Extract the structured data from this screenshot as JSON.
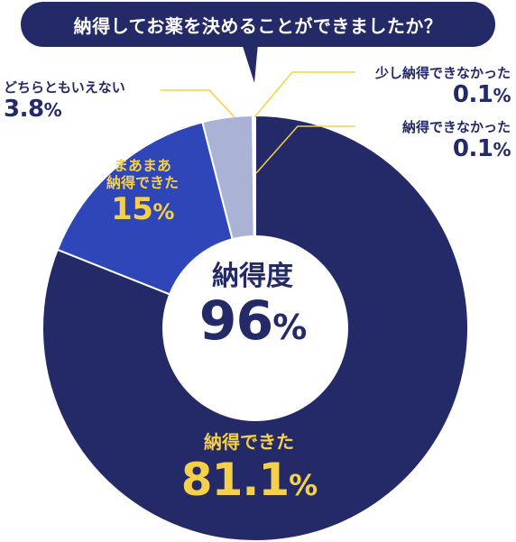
{
  "question": "納得してお薬を決めることができましたか？",
  "center": {
    "label": "納得度",
    "value": "96",
    "unit": "%"
  },
  "colors": {
    "navy": "#232a67",
    "blue": "#2f46b8",
    "lavender": "#aab2d6",
    "yellow": "#f5d04a",
    "line": "#f5d04a"
  },
  "chart_data": {
    "type": "pie",
    "title": "納得してお薬を決めることができましたか？",
    "slices": [
      {
        "label": "納得できた",
        "value": 81.1,
        "display": "81.1",
        "color": "#232a67"
      },
      {
        "label": "まあまあ納得できた",
        "label_lines": [
          "まあまあ",
          "納得できた"
        ],
        "value": 15,
        "display": "15",
        "color": "#2f46b8"
      },
      {
        "label": "どちらともいえない",
        "value": 3.8,
        "display": "3.8",
        "color": "#aab2d6"
      },
      {
        "label": "少し納得できなかった",
        "value": 0.1,
        "display": "0.1",
        "color": "#aab2d6"
      },
      {
        "label": "納得できなかった",
        "value": 0.1,
        "display": "0.1",
        "color": "#aab2d6"
      }
    ],
    "unit": "%",
    "center_summary": {
      "label": "納得度",
      "value": 96
    }
  }
}
